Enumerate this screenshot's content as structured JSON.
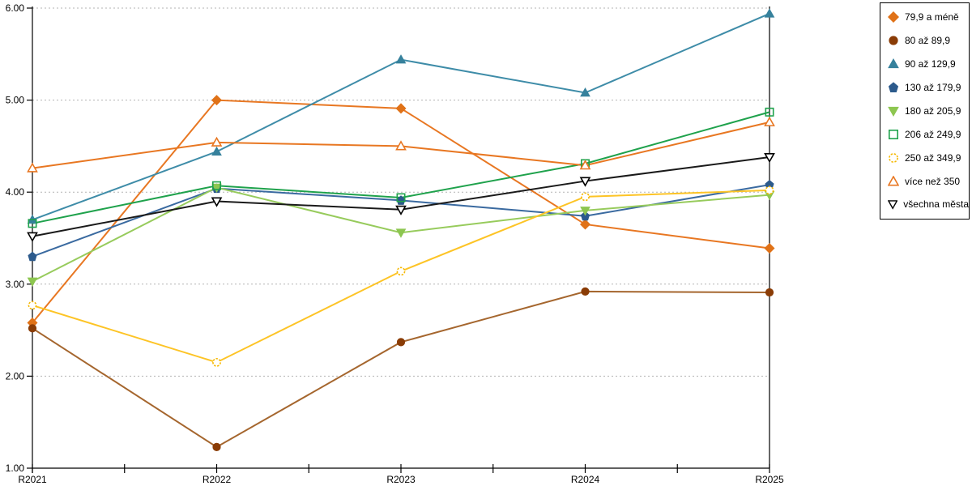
{
  "chart_data": {
    "type": "line",
    "categories": [
      "R2021",
      "R2022",
      "R2023",
      "R2024",
      "R2025"
    ],
    "ylim": [
      1,
      6
    ],
    "ytick_labels": [
      "1.00",
      "2.00",
      "3.00",
      "4.00",
      "5.00",
      "6.00"
    ],
    "grid": "horizontal dotted gridlines at each 1.00",
    "legend_position": "right",
    "series": [
      {
        "name": "79,9 a méně",
        "values": [
          2.58,
          5.0,
          4.91,
          3.65,
          3.39
        ],
        "color": "#E87722",
        "marker_color": "#E07218",
        "marker": "diamond",
        "fill": "solid"
      },
      {
        "name": "80 až 89,9",
        "values": [
          2.52,
          1.23,
          2.37,
          2.92,
          2.91
        ],
        "color": "#A5662E",
        "marker_color": "#8A3C06",
        "marker": "circle",
        "fill": "solid"
      },
      {
        "name": "90 až 129,9",
        "values": [
          3.7,
          4.44,
          5.44,
          5.08,
          5.94
        ],
        "color": "#3E8CA8",
        "marker_color": "#36819C",
        "marker": "triangle-up",
        "fill": "solid"
      },
      {
        "name": "130 až 179,9",
        "values": [
          3.3,
          4.04,
          3.91,
          3.74,
          4.08
        ],
        "color": "#3A6AA0",
        "marker_color": "#2C5A8C",
        "marker": "pentagon",
        "fill": "solid"
      },
      {
        "name": "180 až 205,9",
        "values": [
          3.03,
          4.05,
          3.56,
          3.8,
          3.97
        ],
        "color": "#97CB5C",
        "marker_color": "#8DC650",
        "marker": "triangle-down",
        "fill": "solid"
      },
      {
        "name": "206 až 249,9",
        "values": [
          3.66,
          4.07,
          3.94,
          4.31,
          4.87
        ],
        "color": "#1FA24C",
        "marker_color": "#1FA24C",
        "marker": "square",
        "fill": "hollow"
      },
      {
        "name": "250 až 349,9",
        "values": [
          2.77,
          2.15,
          3.14,
          3.95,
          4.02
        ],
        "color": "#FDC426",
        "marker_color": "#F5B800",
        "marker": "circle-dashed",
        "fill": "hollow"
      },
      {
        "name": "více než 350",
        "values": [
          4.26,
          4.54,
          4.5,
          4.29,
          4.76
        ],
        "color": "#E87722",
        "marker_color": "#E87722",
        "marker": "triangle-up",
        "fill": "hollow"
      },
      {
        "name": "všechna města",
        "values": [
          3.52,
          3.9,
          3.81,
          4.12,
          4.38
        ],
        "color": "#1A1A1A",
        "marker_color": "#000000",
        "marker": "triangle-down",
        "fill": "hollow"
      }
    ]
  }
}
